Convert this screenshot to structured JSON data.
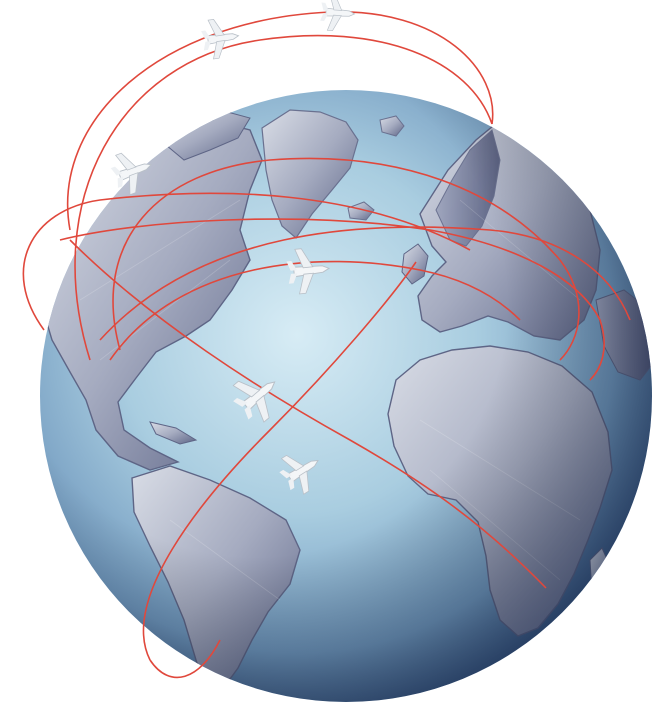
{
  "image": {
    "subject": "globe-with-flight-routes",
    "visible_text": []
  },
  "colors": {
    "background": "#ffffff",
    "ocean_light": "#cfe6f1",
    "ocean_mid": "#8fb8d2",
    "ocean_dark": "#3f5f86",
    "land_light": "#c7ccd9",
    "land_dark": "#5b6384",
    "route": "#e0483c",
    "airplane": "#f4f6f8"
  },
  "icons": {
    "airplane": "airplane-icon"
  }
}
